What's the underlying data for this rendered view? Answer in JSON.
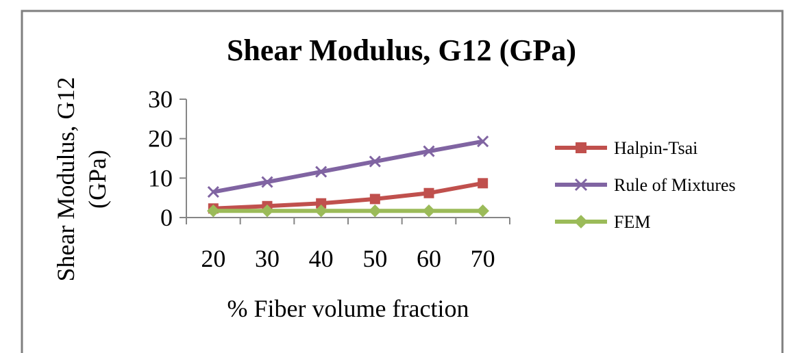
{
  "chart_data": {
    "type": "line",
    "title": "Shear Modulus, G12 (GPa)",
    "xlabel": "% Fiber volume fraction",
    "ylabel_lines": [
      "Shear Modulus, G12",
      "(GPa)"
    ],
    "categories": [
      "20",
      "30",
      "40",
      "50",
      "60",
      "70"
    ],
    "yticks": [
      "0",
      "10",
      "20",
      "30"
    ],
    "ylim": [
      0,
      30
    ],
    "grid": false,
    "legend_position": "right",
    "series": [
      {
        "name": "Halpin-Tsai",
        "values": [
          2.3,
          2.9,
          3.6,
          4.7,
          6.2,
          8.7
        ],
        "color": "#c0504d",
        "marker": "square"
      },
      {
        "name": "Rule of Mixtures",
        "values": [
          6.5,
          9.0,
          11.6,
          14.2,
          16.8,
          19.3
        ],
        "color": "#8064a2",
        "marker": "x"
      },
      {
        "name": "FEM",
        "values": [
          1.7,
          1.7,
          1.7,
          1.7,
          1.7,
          1.7
        ],
        "color": "#9bbb59",
        "marker": "diamond"
      }
    ]
  }
}
